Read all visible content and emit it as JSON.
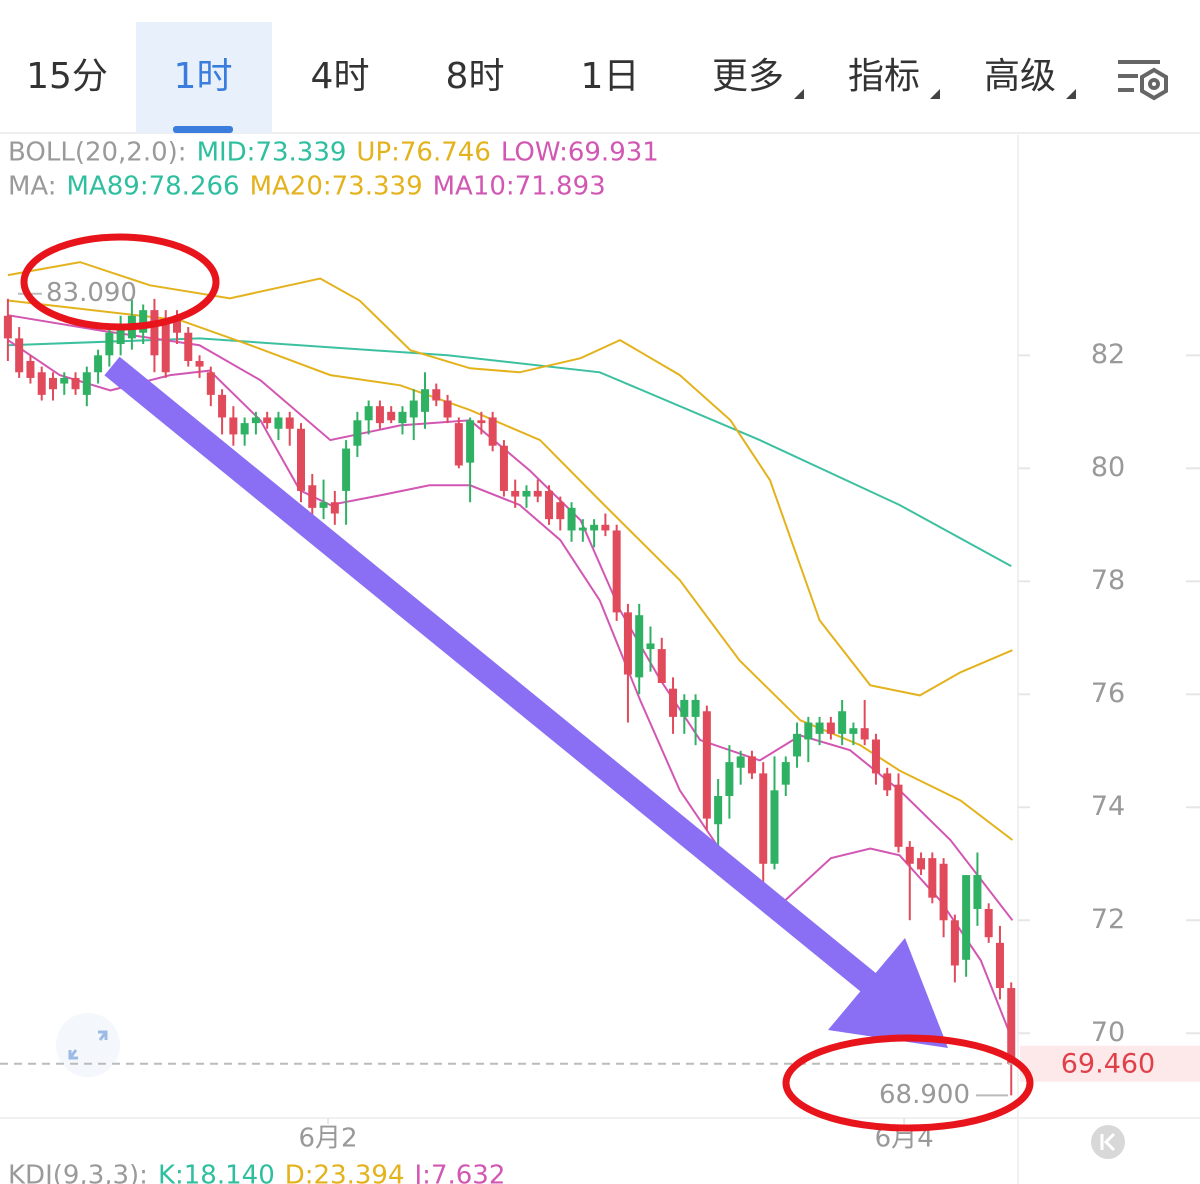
{
  "tabs": [
    "15分",
    "1时",
    "4时",
    "8时",
    "1日",
    "更多",
    "指标",
    "高级"
  ],
  "active_tab": 1,
  "dropdown_tabs": [
    5,
    6,
    7
  ],
  "chart_data": {
    "type": "candlestick",
    "indicator_rows": [
      [
        {
          "text": "BOLL(20,2.0):",
          "color": "#9a9a9a"
        },
        {
          "text": "MID:73.339",
          "color": "#2ebf9f"
        },
        {
          "text": "UP:76.746",
          "color": "#e3b21c"
        },
        {
          "text": "LOW:69.931",
          "color": "#d257b3"
        }
      ],
      [
        {
          "text": "MA:",
          "color": "#9a9a9a"
        },
        {
          "text": "MA89:78.266",
          "color": "#2ebf9f"
        },
        {
          "text": "MA20:73.339",
          "color": "#e3b21c"
        },
        {
          "text": "MA10:71.893",
          "color": "#d257b3"
        }
      ]
    ],
    "up_color": "#2fb163",
    "down_color": "#e04a5a",
    "ohlc": [
      [
        82.7,
        83.0,
        81.9,
        82.3
      ],
      [
        82.3,
        82.5,
        81.6,
        81.7
      ],
      [
        81.9,
        82.0,
        81.5,
        81.6
      ],
      [
        81.7,
        81.8,
        81.2,
        81.3
      ],
      [
        81.6,
        81.7,
        81.2,
        81.4
      ],
      [
        81.5,
        81.7,
        81.3,
        81.6
      ],
      [
        81.6,
        81.7,
        81.3,
        81.4
      ],
      [
        81.3,
        81.8,
        81.1,
        81.7
      ],
      [
        81.7,
        82.1,
        81.5,
        82.0
      ],
      [
        82.0,
        82.5,
        81.8,
        82.4
      ],
      [
        82.2,
        82.7,
        82.0,
        82.5
      ],
      [
        82.3,
        83.0,
        82.1,
        82.7
      ],
      [
        82.4,
        82.9,
        82.2,
        82.8
      ],
      [
        82.8,
        83.0,
        81.7,
        82.0
      ],
      [
        82.6,
        82.8,
        81.6,
        81.7
      ],
      [
        82.7,
        82.8,
        82.2,
        82.4
      ],
      [
        82.4,
        82.5,
        81.8,
        81.9
      ],
      [
        81.9,
        82.0,
        81.6,
        81.8
      ],
      [
        81.7,
        81.8,
        81.1,
        81.3
      ],
      [
        81.3,
        81.4,
        80.6,
        80.9
      ],
      [
        80.9,
        81.1,
        80.4,
        80.6
      ],
      [
        80.6,
        80.9,
        80.4,
        80.8
      ],
      [
        80.8,
        81.0,
        80.6,
        80.9
      ],
      [
        80.9,
        81.0,
        80.7,
        80.8
      ],
      [
        80.7,
        81.0,
        80.5,
        80.9
      ],
      [
        80.9,
        81.0,
        80.4,
        80.7
      ],
      [
        80.7,
        80.8,
        79.4,
        79.6
      ],
      [
        79.7,
        79.9,
        79.1,
        79.3
      ],
      [
        79.3,
        79.8,
        79.1,
        79.4
      ],
      [
        79.4,
        79.6,
        79.0,
        79.2
      ],
      [
        79.6,
        80.5,
        79.0,
        80.35
      ],
      [
        80.4,
        81.0,
        80.2,
        80.85
      ],
      [
        80.85,
        81.2,
        80.6,
        81.1
      ],
      [
        81.1,
        81.2,
        80.7,
        80.8
      ],
      [
        81.0,
        81.1,
        80.8,
        80.85
      ],
      [
        80.8,
        81.1,
        80.6,
        81.0
      ],
      [
        80.9,
        81.4,
        80.5,
        81.2
      ],
      [
        81.0,
        81.7,
        80.7,
        81.4
      ],
      [
        81.4,
        81.5,
        81.1,
        81.2
      ],
      [
        81.2,
        81.3,
        80.8,
        80.9
      ],
      [
        80.8,
        80.9,
        80.0,
        80.05
      ],
      [
        80.1,
        80.9,
        79.4,
        80.85
      ],
      [
        80.85,
        81.0,
        80.6,
        80.8
      ],
      [
        80.9,
        81.0,
        80.3,
        80.4
      ],
      [
        80.4,
        80.5,
        79.5,
        79.6
      ],
      [
        79.6,
        79.8,
        79.3,
        79.5
      ],
      [
        79.5,
        79.7,
        79.3,
        79.6
      ],
      [
        79.6,
        79.8,
        79.4,
        79.5
      ],
      [
        79.6,
        79.7,
        79.0,
        79.1
      ],
      [
        79.4,
        79.5,
        78.9,
        79.1
      ],
      [
        78.9,
        79.4,
        78.7,
        79.3
      ],
      [
        78.9,
        79.1,
        78.7,
        78.95
      ],
      [
        78.9,
        79.1,
        78.6,
        79.0
      ],
      [
        79.0,
        79.2,
        78.8,
        78.9
      ],
      [
        78.9,
        79.0,
        77.3,
        77.45
      ],
      [
        77.45,
        77.6,
        75.5,
        76.35
      ],
      [
        76.3,
        77.6,
        76.0,
        77.4
      ],
      [
        76.8,
        77.2,
        76.4,
        76.9
      ],
      [
        76.8,
        77.0,
        76.2,
        76.2
      ],
      [
        76.1,
        76.3,
        75.3,
        75.6
      ],
      [
        75.6,
        76.0,
        75.3,
        75.9
      ],
      [
        75.6,
        76.0,
        75.1,
        75.9
      ],
      [
        75.7,
        75.8,
        73.6,
        73.8
      ],
      [
        73.7,
        74.5,
        72.8,
        74.2
      ],
      [
        74.2,
        75.1,
        73.8,
        74.8
      ],
      [
        74.7,
        75.0,
        74.4,
        74.9
      ],
      [
        74.9,
        75.0,
        74.5,
        74.6
      ],
      [
        74.6,
        74.8,
        72.6,
        73.0
      ],
      [
        73.0,
        74.9,
        72.9,
        74.3
      ],
      [
        74.4,
        74.9,
        74.2,
        74.8
      ],
      [
        74.9,
        75.5,
        74.7,
        75.3
      ],
      [
        75.2,
        75.6,
        74.8,
        75.5
      ],
      [
        75.3,
        75.6,
        75.1,
        75.5
      ],
      [
        75.5,
        75.6,
        75.2,
        75.3
      ],
      [
        75.3,
        75.9,
        75.1,
        75.7
      ],
      [
        75.3,
        75.5,
        75.1,
        75.4
      ],
      [
        75.4,
        75.9,
        75.1,
        75.2
      ],
      [
        75.2,
        75.3,
        74.4,
        74.6
      ],
      [
        74.6,
        74.7,
        74.2,
        74.3
      ],
      [
        74.4,
        74.6,
        73.2,
        73.3
      ],
      [
        73.3,
        73.4,
        72.0,
        73.0
      ],
      [
        73.1,
        73.2,
        72.8,
        72.9
      ],
      [
        73.1,
        73.2,
        72.3,
        72.4
      ],
      [
        73.0,
        73.1,
        71.7,
        72.0
      ],
      [
        72.0,
        72.1,
        70.9,
        71.2
      ],
      [
        71.3,
        72.8,
        71.0,
        72.8
      ],
      [
        72.2,
        73.2,
        71.9,
        72.8
      ],
      [
        72.2,
        72.3,
        71.6,
        71.7
      ],
      [
        71.6,
        71.9,
        70.6,
        70.8
      ],
      [
        70.8,
        70.9,
        68.9,
        69.46
      ]
    ],
    "lines": [
      {
        "color": "#3cc0a0",
        "x": [
          0,
          17,
          39,
          52.5,
          66.7,
          79.1,
          89
        ],
        "values": [
          82.18,
          82.3,
          82.0,
          81.7,
          80.5,
          79.35,
          78.27
        ]
      },
      {
        "color": "#e3b21c",
        "x": [
          0,
          6.4,
          12.6,
          19.7,
          27.7,
          31.2,
          35.7,
          41.0,
          45.4,
          50.8,
          54.3,
          59.6,
          64.1,
          67.6,
          72.0,
          76.5,
          80.9,
          84.5,
          89.1
        ],
        "values": [
          83.42,
          83.65,
          83.24,
          83.01,
          83.36,
          82.97,
          82.09,
          81.77,
          81.7,
          81.95,
          82.27,
          81.65,
          80.85,
          79.79,
          77.31,
          76.16,
          75.98,
          76.39,
          76.78
        ]
      },
      {
        "color": "#e3b21c",
        "x": [
          0,
          15.3,
          21.5,
          28.6,
          34.8,
          41.0,
          47.2,
          52.5,
          59.6,
          64.9,
          70.3,
          75.6,
          79.1,
          84.5,
          89.1
        ],
        "values": [
          82.97,
          82.62,
          82.18,
          81.65,
          81.47,
          81.03,
          80.5,
          79.43,
          78.02,
          76.6,
          75.54,
          75.1,
          74.65,
          74.12,
          73.42
        ]
      },
      {
        "color": "#d257b3",
        "x": [
          0,
          4.6,
          9.1,
          14.4,
          17.9,
          22.4,
          25.9,
          28.6,
          33.0,
          37.4,
          41.0,
          45.4,
          49.0,
          52.5,
          56.1,
          59.6,
          63.2,
          68.5,
          73.0,
          76.5,
          79.1,
          82.7,
          86.3,
          89.1
        ],
        "values": [
          82.27,
          81.65,
          81.38,
          81.65,
          81.73,
          80.85,
          79.61,
          79.35,
          79.52,
          79.7,
          79.7,
          79.35,
          78.73,
          77.66,
          75.89,
          74.3,
          73.24,
          72.27,
          73.1,
          73.27,
          73.15,
          72.35,
          71.29,
          69.88
        ]
      },
      {
        "color": "#d257b3",
        "x": [
          0,
          8.2,
          17.0,
          22.4,
          28.6,
          34.8,
          41.0,
          46.3,
          50.8,
          54.3,
          57.9,
          61.4,
          66.7,
          70.3,
          74.7,
          79.1,
          83.6,
          89.1
        ],
        "values": [
          82.71,
          82.44,
          82.18,
          81.56,
          80.5,
          80.76,
          80.85,
          79.96,
          79.08,
          77.49,
          76.25,
          75.19,
          74.83,
          75.27,
          75.01,
          74.3,
          73.42,
          72.0
        ]
      }
    ],
    "ylim": [
      68.5,
      85.9
    ],
    "yticks": [
      70,
      72,
      74,
      76,
      78,
      80,
      82
    ],
    "xlim": [
      -0.7,
      89.6
    ],
    "xticks": [
      {
        "value": 28.4,
        "label": "6月2"
      },
      {
        "value": 79.5,
        "label": "6月4"
      }
    ],
    "high": {
      "value": 83.09,
      "label": "83.090"
    },
    "low": {
      "value": 68.9,
      "label": "68.900"
    },
    "last_price": {
      "value": 69.46,
      "label": "69.460"
    }
  },
  "sub_indicator": [
    {
      "text": "KDJ(9,3,3):",
      "color": "#9a9a9a"
    },
    {
      "text": "K:18.140",
      "color": "#2ebf9f"
    },
    {
      "text": "D:23.394",
      "color": "#e3b21c"
    },
    {
      "text": "J:7.632",
      "color": "#d257b3"
    }
  ]
}
